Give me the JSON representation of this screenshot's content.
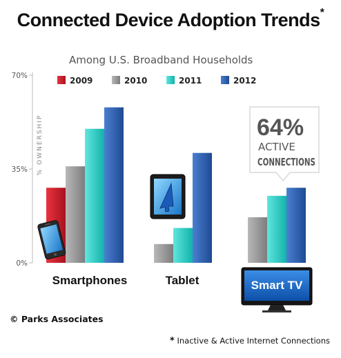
{
  "title": "Connected Device Adoption Trends",
  "title_mark": "*",
  "subtitle": "Among U.S. Broadband Households",
  "footnote_mark": "*",
  "footnote": "Inactive & Active Internet Connections",
  "copyright": "© Parks Associates",
  "callout": {
    "value": "64%",
    "line1": "ACTIVE",
    "line2": "CONNECTIONS"
  },
  "tv_label": "Smart TV",
  "chart_data": {
    "type": "bar",
    "ylabel": "% OWNERSHIP",
    "ylim": [
      0,
      70
    ],
    "yticks": [
      {
        "value": 0,
        "label": "0%"
      },
      {
        "value": 35,
        "label": "35%"
      },
      {
        "value": 70,
        "label": "70%"
      }
    ],
    "categories": [
      "Smartphones",
      "Tablet",
      "Smart TV"
    ],
    "series": [
      {
        "name": "2009",
        "color": "#cc1d2c",
        "values": [
          28,
          null,
          null
        ]
      },
      {
        "name": "2010",
        "color": "#9a9a9a",
        "values": [
          36,
          7,
          17
        ]
      },
      {
        "name": "2011",
        "color": "#23cfc6",
        "values": [
          50,
          13,
          25
        ]
      },
      {
        "name": "2012",
        "color": "#2e5fae",
        "values": [
          58,
          41,
          28
        ]
      }
    ],
    "legend_position": "top",
    "grid": false
  },
  "icons": [
    "smartphone-icon",
    "tablet-icon",
    "smart-tv-icon"
  ]
}
